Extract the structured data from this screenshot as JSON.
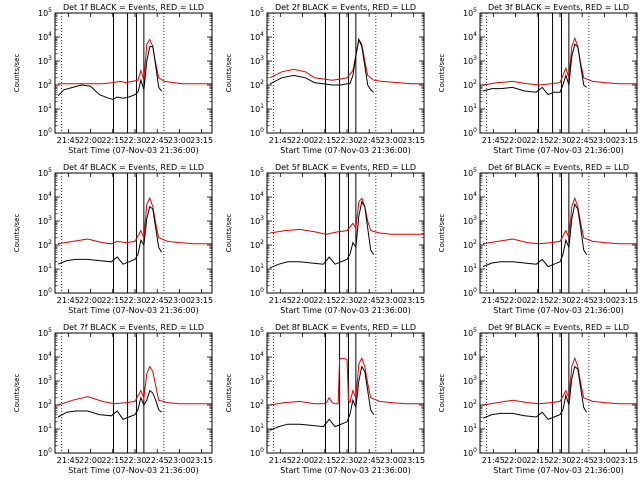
{
  "chart_data": {
    "type": "line",
    "xlabel": "Start Time (07-Nov-03 21:36:00)",
    "ylabel": "Counts/sec",
    "x_tick_labels": [
      "21:45",
      "22:00",
      "22:15",
      "22:30",
      "22:45",
      "23:00",
      "23:15"
    ],
    "x_ticks_min": [
      -9,
      6,
      21,
      36,
      51,
      66,
      81
    ],
    "xlim_min": [
      -18,
      88
    ],
    "y_tick_exponents": [
      0,
      1,
      2,
      3,
      4,
      5
    ],
    "ylim_log10": [
      0,
      5
    ],
    "yscale": "log",
    "vertical_lines_min": [
      21.5,
      31,
      37,
      42
    ],
    "dotted_lines_min": [
      -13.5,
      55.5
    ],
    "series_colors": {
      "black": "#000000",
      "red": "#dd0000"
    },
    "panels": [
      {
        "title": "Det 1f BLACK = Events, RED = LLD",
        "black": {
          "x": [
            -16,
            -12,
            -6,
            0,
            6,
            12,
            18,
            21,
            24,
            28,
            32,
            36,
            38,
            40,
            42,
            44,
            46,
            48,
            50,
            52,
            54
          ],
          "log10": [
            1.55,
            1.8,
            1.9,
            2.0,
            1.95,
            1.6,
            1.45,
            1.4,
            1.5,
            1.45,
            1.5,
            1.6,
            1.7,
            2.2,
            1.8,
            3.0,
            3.6,
            3.6,
            2.8,
            1.9,
            1.75
          ]
        },
        "red": {
          "x": [
            -16,
            -6,
            4,
            14,
            21,
            26,
            30,
            34,
            38,
            40,
            42,
            44,
            46,
            48,
            50,
            52,
            56,
            62,
            68,
            74,
            80,
            88
          ],
          "log10": [
            2.05,
            2.05,
            2.05,
            2.05,
            2.1,
            2.15,
            2.1,
            2.15,
            2.2,
            2.6,
            2.2,
            3.7,
            3.9,
            3.6,
            2.9,
            2.3,
            2.15,
            2.1,
            2.05,
            2.05,
            2.05,
            2.05
          ]
        }
      },
      {
        "title": "Det 2f BLACK = Events, RED = LLD",
        "black": {
          "x": [
            -16,
            -8,
            0,
            8,
            14,
            20,
            26,
            32,
            36,
            38,
            40,
            42,
            44,
            46,
            48,
            50,
            52,
            54
          ],
          "log10": [
            2.05,
            2.3,
            2.4,
            2.3,
            2.1,
            2.05,
            2.0,
            2.0,
            2.05,
            2.05,
            2.4,
            3.2,
            3.9,
            3.6,
            2.8,
            2.0,
            1.8,
            1.7
          ]
        },
        "red": {
          "x": [
            -16,
            -8,
            0,
            8,
            14,
            20,
            26,
            32,
            36,
            40,
            44,
            46,
            48,
            50,
            54,
            60,
            70,
            80,
            88
          ],
          "log10": [
            2.3,
            2.55,
            2.65,
            2.55,
            2.3,
            2.25,
            2.2,
            2.25,
            2.3,
            2.6,
            3.9,
            3.7,
            3.0,
            2.4,
            2.2,
            2.15,
            2.1,
            2.05,
            2.05
          ]
        }
      },
      {
        "title": "Det 3f BLACK = Events, RED = LLD",
        "black": {
          "x": [
            -16,
            -10,
            -4,
            4,
            12,
            20,
            24,
            28,
            32,
            36,
            38,
            40,
            42,
            44,
            46,
            48,
            50,
            52,
            54
          ],
          "log10": [
            1.75,
            1.85,
            1.85,
            1.9,
            1.75,
            1.7,
            1.9,
            1.6,
            1.7,
            1.7,
            2.0,
            2.4,
            2.0,
            3.2,
            3.7,
            3.6,
            2.8,
            2.0,
            1.9
          ]
        },
        "red": {
          "x": [
            -16,
            -6,
            4,
            14,
            22,
            30,
            36,
            40,
            42,
            44,
            46,
            48,
            50,
            52,
            58,
            66,
            76,
            88
          ],
          "log10": [
            2.0,
            2.1,
            2.15,
            2.05,
            2.0,
            2.05,
            2.1,
            2.7,
            2.3,
            3.6,
            3.95,
            3.6,
            2.9,
            2.3,
            2.15,
            2.1,
            2.05,
            2.05
          ]
        }
      },
      {
        "title": "Det 4f BLACK = Events, RED = LLD",
        "black": {
          "x": [
            -16,
            -10,
            -4,
            4,
            12,
            20,
            24,
            28,
            32,
            36,
            38,
            40,
            42,
            44,
            46,
            48,
            50,
            52,
            54
          ],
          "log10": [
            1.2,
            1.35,
            1.4,
            1.4,
            1.35,
            1.3,
            1.5,
            1.2,
            1.3,
            1.4,
            1.6,
            2.2,
            2.0,
            3.1,
            3.6,
            3.5,
            2.7,
            1.9,
            1.7
          ]
        },
        "red": {
          "x": [
            -16,
            -6,
            4,
            14,
            20,
            24,
            30,
            36,
            40,
            42,
            44,
            46,
            48,
            50,
            52,
            58,
            66,
            76,
            88
          ],
          "log10": [
            2.05,
            2.15,
            2.25,
            2.1,
            2.05,
            2.15,
            2.1,
            2.15,
            2.6,
            2.3,
            3.7,
            3.95,
            3.6,
            2.9,
            2.3,
            2.15,
            2.1,
            2.05,
            2.05
          ]
        }
      },
      {
        "title": "Det 5f BLACK = Events, RED = LLD",
        "black": {
          "x": [
            -16,
            -10,
            -4,
            4,
            12,
            20,
            24,
            28,
            32,
            36,
            38,
            40,
            42,
            44,
            46,
            48,
            50,
            52,
            54
          ],
          "log10": [
            1.05,
            1.2,
            1.3,
            1.3,
            1.25,
            1.2,
            1.5,
            1.2,
            1.3,
            1.4,
            1.6,
            2.1,
            1.9,
            3.2,
            3.8,
            3.6,
            2.7,
            1.8,
            1.6
          ]
        },
        "red": {
          "x": [
            -16,
            -6,
            4,
            14,
            22,
            30,
            36,
            40,
            42,
            44,
            46,
            48,
            50,
            52,
            58,
            66,
            76,
            88
          ],
          "log10": [
            2.5,
            2.6,
            2.65,
            2.55,
            2.45,
            2.55,
            2.6,
            2.9,
            2.7,
            3.8,
            3.95,
            3.6,
            3.0,
            2.6,
            2.5,
            2.45,
            2.45,
            2.45
          ]
        }
      },
      {
        "title": "Det 6f BLACK = Events, RED = LLD",
        "black": {
          "x": [
            -16,
            -10,
            -4,
            4,
            12,
            20,
            24,
            28,
            32,
            36,
            38,
            40,
            42,
            44,
            46,
            48,
            50,
            52,
            54
          ],
          "log10": [
            1.1,
            1.25,
            1.3,
            1.3,
            1.25,
            1.2,
            1.4,
            1.1,
            1.2,
            1.3,
            1.6,
            2.2,
            1.9,
            3.1,
            3.7,
            3.5,
            2.7,
            1.8,
            1.6
          ]
        },
        "red": {
          "x": [
            -16,
            -6,
            4,
            14,
            22,
            30,
            36,
            40,
            42,
            44,
            46,
            48,
            50,
            52,
            58,
            66,
            76,
            88
          ],
          "log10": [
            2.05,
            2.15,
            2.25,
            2.1,
            2.05,
            2.1,
            2.15,
            2.6,
            2.3,
            3.6,
            3.95,
            3.6,
            2.9,
            2.3,
            2.15,
            2.1,
            2.05,
            2.05
          ]
        }
      },
      {
        "title": "Det 7f BLACK = Events, RED = LLD",
        "black": {
          "x": [
            -16,
            -10,
            -4,
            4,
            12,
            20,
            24,
            28,
            32,
            36,
            38,
            40,
            42,
            44,
            46,
            48,
            50,
            52,
            54
          ],
          "log10": [
            1.5,
            1.7,
            1.75,
            1.75,
            1.6,
            1.55,
            1.75,
            1.4,
            1.5,
            1.6,
            1.8,
            2.3,
            2.0,
            2.2,
            2.6,
            2.5,
            2.2,
            1.8,
            1.7
          ]
        },
        "red": {
          "x": [
            -16,
            -6,
            4,
            14,
            22,
            30,
            36,
            40,
            42,
            44,
            46,
            48,
            50,
            52,
            58,
            66,
            76,
            88
          ],
          "log10": [
            2.0,
            2.2,
            2.35,
            2.15,
            2.05,
            2.1,
            2.15,
            2.6,
            2.3,
            3.3,
            3.6,
            3.4,
            2.8,
            2.2,
            2.1,
            2.05,
            2.05,
            2.05
          ]
        }
      },
      {
        "title": "Det 8f BLACK = Events, RED = LLD",
        "black": {
          "x": [
            -16,
            -10,
            -4,
            4,
            12,
            20,
            24,
            28,
            32,
            36,
            38,
            40,
            42,
            44,
            46,
            48,
            50,
            52,
            54
          ],
          "log10": [
            0.95,
            1.1,
            1.2,
            1.2,
            1.15,
            1.1,
            1.4,
            1.1,
            1.2,
            1.3,
            1.6,
            2.2,
            1.9,
            3.0,
            3.6,
            3.4,
            2.6,
            1.8,
            1.6
          ]
        },
        "red": {
          "x": [
            -16,
            -6,
            4,
            14,
            20,
            22,
            24,
            26,
            28,
            30,
            31,
            33,
            36,
            37,
            38,
            40,
            42,
            44,
            46,
            48,
            50,
            52,
            58,
            66,
            76,
            88
          ],
          "log10": [
            2.0,
            2.1,
            2.15,
            2.05,
            2.05,
            2.1,
            2.3,
            2.1,
            2.05,
            2.05,
            3.9,
            3.95,
            3.9,
            2.2,
            2.1,
            2.6,
            2.3,
            3.7,
            3.95,
            3.6,
            2.9,
            2.3,
            2.15,
            2.1,
            2.05,
            2.05
          ]
        }
      },
      {
        "title": "Det 9f BLACK = Events, RED = LLD",
        "black": {
          "x": [
            -16,
            -10,
            -4,
            4,
            12,
            20,
            24,
            28,
            32,
            36,
            38,
            40,
            42,
            44,
            46,
            48,
            50,
            52,
            54
          ],
          "log10": [
            1.45,
            1.6,
            1.65,
            1.65,
            1.55,
            1.5,
            1.7,
            1.4,
            1.5,
            1.6,
            1.8,
            2.4,
            2.0,
            3.1,
            3.6,
            3.5,
            2.7,
            1.9,
            1.7
          ]
        },
        "red": {
          "x": [
            -16,
            -6,
            4,
            14,
            22,
            30,
            36,
            40,
            42,
            44,
            46,
            48,
            50,
            52,
            58,
            66,
            76,
            88
          ],
          "log10": [
            2.0,
            2.1,
            2.2,
            2.1,
            2.05,
            2.1,
            2.15,
            2.6,
            2.3,
            3.6,
            3.95,
            3.6,
            2.9,
            2.3,
            2.15,
            2.1,
            2.05,
            2.05
          ]
        }
      }
    ]
  }
}
